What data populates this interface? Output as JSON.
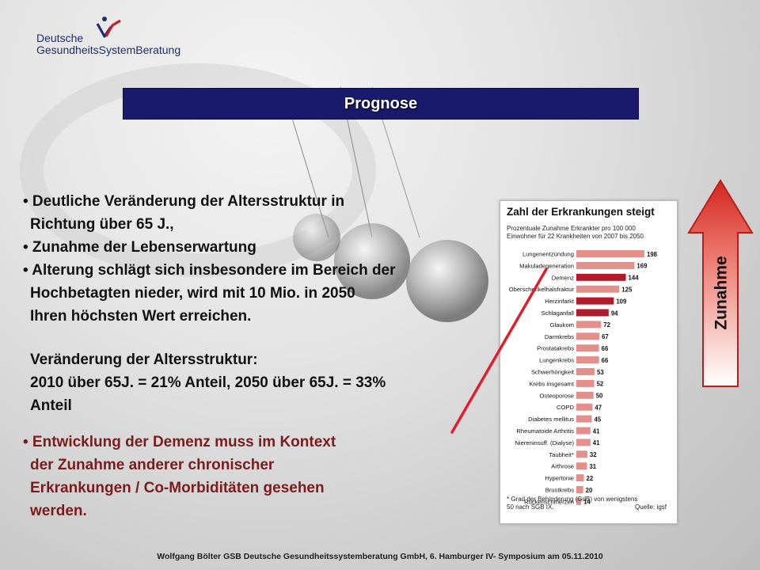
{
  "logo": {
    "line1": "Deutsche",
    "line2": "GesundheitsSystemBeratung"
  },
  "banner": {
    "title": "Prognose"
  },
  "bullets": {
    "b1_l1": "• Deutliche Veränderung der Altersstruktur in",
    "b1_l2": "Richtung über 65 J.,",
    "b2": "• Zunahme der Lebenserwartung",
    "b3_l1": "• Alterung schlägt sich insbesondere im Bereich der",
    "b3_l2": "Hochbetagten nieder, wird mit 10 Mio. in 2050",
    "b3_l3": "Ihren höchsten Wert erreichen.",
    "v_l1": "Veränderung der Altersstruktur:",
    "v_l2": "2010 über 65J. = 21% Anteil,   2050 über 65J. = 33%",
    "v_l3": "Anteil",
    "d_l1": "• Entwicklung der Demenz muss im Kontext",
    "d_l2": "der Zunahme anderer chronischer",
    "d_l3": "Erkrankungen / Co-Morbiditäten gesehen",
    "d_l4": "werden."
  },
  "arrow": {
    "label": "Zunahme",
    "color": "#e23b33"
  },
  "chart_data": {
    "type": "bar",
    "title": "Zahl der Erkrankungen steigt",
    "subtitle_l1": "Prozentuale Zunahme Erkrankter pro 100 000",
    "subtitle_l2": "Einwohner für 22 Krankheiten von 2007 bis 2050",
    "categories": [
      "Lungenentzündung",
      "Makuladegeneration",
      "Demenz",
      "Oberschenkelhalsfraktur",
      "Herzinfarkt",
      "Schlaganfall",
      "Glaukom",
      "Darmkrebs",
      "Prostatakrebs",
      "Lungenkrebs",
      "Schwerhörigkeit",
      "Krebs insgesamt",
      "Osteoporose",
      "COPD",
      "Diabetes mellitus",
      "Rheumatoide Arthritis",
      "Niereninsuff. (Dialyse)",
      "Taubheit*",
      "Arthrose",
      "Hypertonie",
      "Brustkrebs",
      "Rückenschmerzen"
    ],
    "values": [
      198,
      169,
      144,
      125,
      109,
      94,
      72,
      67,
      66,
      66,
      53,
      52,
      50,
      47,
      45,
      41,
      41,
      32,
      31,
      22,
      20,
      14
    ],
    "highlight": [
      "Demenz",
      "Herzinfarkt",
      "Schlaganfall"
    ],
    "colors": {
      "normal": "#e48f8a",
      "highlight": "#b01a2a",
      "pointer": "#e01e2e"
    },
    "footnote_l1": "* Grad der Behinderung (GdB) von wenigstens",
    "footnote_l2": "50 nach SGB IX.",
    "source": "Quelle: igsf"
  },
  "footer": {
    "text": "Wolfgang Bölter GSB Deutsche Gesundheitssystemberatung GmbH,  6. Hamburger IV- Symposium am 05.11.2010"
  }
}
